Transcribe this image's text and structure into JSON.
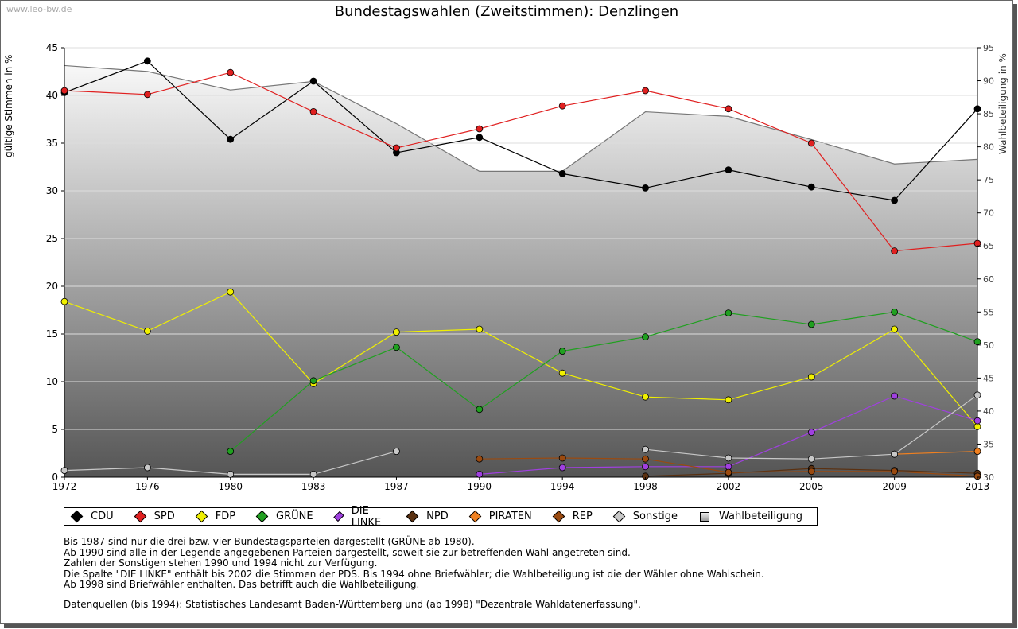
{
  "watermark": "www.leo-bw.de",
  "chart_data": {
    "type": "line",
    "title": "Bundestagswahlen (Zweitstimmen): Denzlingen",
    "ylabel": "gültige Stimmen in %",
    "ylabel_right": "Wahlbeteiligung in %",
    "x": [
      "1972",
      "1976",
      "1980",
      "1983",
      "1987",
      "1990",
      "1994",
      "1998",
      "2002",
      "2005",
      "2009",
      "2013"
    ],
    "ylim": [
      0,
      45
    ],
    "yticks": [
      0,
      5,
      10,
      15,
      20,
      25,
      30,
      35,
      40,
      45
    ],
    "ylim_right": [
      30,
      95
    ],
    "yticks_right": [
      30,
      35,
      40,
      45,
      50,
      55,
      60,
      65,
      70,
      75,
      80,
      85,
      90,
      95
    ],
    "grid": true,
    "legend_position": "bottom",
    "series": [
      {
        "name": "CDU",
        "color": "#000000",
        "values": [
          40.3,
          43.6,
          35.4,
          41.5,
          34.0,
          35.6,
          31.8,
          30.3,
          32.2,
          30.4,
          29.0,
          38.6
        ]
      },
      {
        "name": "SPD",
        "color": "#e02020",
        "values": [
          40.5,
          40.1,
          42.4,
          38.3,
          34.5,
          36.5,
          38.9,
          40.5,
          38.6,
          35.0,
          23.7,
          24.5
        ]
      },
      {
        "name": "FDP",
        "color": "#f0f000",
        "values": [
          18.4,
          15.3,
          19.4,
          9.8,
          15.2,
          15.5,
          10.9,
          8.4,
          8.1,
          10.5,
          15.5,
          5.3
        ]
      },
      {
        "name": "GRÜNE",
        "color": "#20a020",
        "values": [
          null,
          null,
          2.7,
          10.1,
          13.6,
          7.1,
          13.2,
          14.7,
          17.2,
          16.0,
          17.3,
          14.2
        ]
      },
      {
        "name": "DIE LINKE",
        "color": "#a040e0",
        "values": [
          null,
          null,
          null,
          null,
          null,
          0.3,
          1.0,
          1.1,
          1.1,
          4.7,
          8.5,
          5.9
        ]
      },
      {
        "name": "NPD",
        "color": "#5a3010",
        "values": [
          null,
          null,
          null,
          null,
          null,
          null,
          null,
          0.1,
          0.4,
          0.9,
          0.7,
          0.4
        ]
      },
      {
        "name": "PIRATEN",
        "color": "#f08020",
        "values": [
          null,
          null,
          null,
          null,
          null,
          null,
          null,
          null,
          null,
          null,
          2.4,
          2.7
        ]
      },
      {
        "name": "REP",
        "color": "#9a4a10",
        "values": [
          null,
          null,
          null,
          null,
          null,
          1.9,
          2.0,
          1.9,
          0.5,
          0.6,
          0.6,
          0.1
        ]
      },
      {
        "name": "Sonstige",
        "color": "#c8c8c8",
        "values": [
          0.7,
          1.0,
          0.3,
          0.3,
          2.7,
          null,
          null,
          2.9,
          2.0,
          1.9,
          2.4,
          8.6
        ]
      },
      {
        "name": "Wahlbeteiligung",
        "color": "#808080",
        "axis": "right",
        "values": [
          92.3,
          91.4,
          88.6,
          89.9,
          83.5,
          76.3,
          76.3,
          85.3,
          84.6,
          81.1,
          77.4,
          78.1
        ]
      }
    ]
  },
  "legend": {
    "items": [
      {
        "label": "CDU",
        "color": "#000000"
      },
      {
        "label": "SPD",
        "color": "#e02020"
      },
      {
        "label": "FDP",
        "color": "#f0f000"
      },
      {
        "label": "GRÜNE",
        "color": "#20a020"
      },
      {
        "label": "DIE LINKE",
        "color": "#a040e0"
      },
      {
        "label": "NPD",
        "color": "#5a3010"
      },
      {
        "label": "PIRATEN",
        "color": "#f08020"
      },
      {
        "label": "REP",
        "color": "#9a4a10"
      },
      {
        "label": "Sonstige",
        "color": "#c8c8c8"
      }
    ],
    "turnout_label": "Wahlbeteiligung"
  },
  "notes": [
    "Bis 1987 sind nur die drei bzw. vier Bundestagsparteien dargestellt (GRÜNE ab 1980).",
    "Ab 1990 sind alle in der Legende angegebenen Parteien dargestellt, soweit sie zur betreffenden Wahl angetreten sind.",
    "Zahlen der Sonstigen stehen 1990 und 1994 nicht zur Verfügung.",
    "Die Spalte \"DIE LINKE\" enthält bis 2002 die Stimmen der PDS. Bis 1994 ohne Briefwähler; die Wahlbeteiligung ist die der Wähler ohne Wahlschein.",
    "Ab 1998 sind Briefwähler enthalten. Das betrifft auch die Wahlbeteiligung."
  ],
  "source": "Datenquellen (bis 1994): Statistisches Landesamt Baden-Württemberg und (ab 1998) \"Dezentrale Wahldatenerfassung\"."
}
